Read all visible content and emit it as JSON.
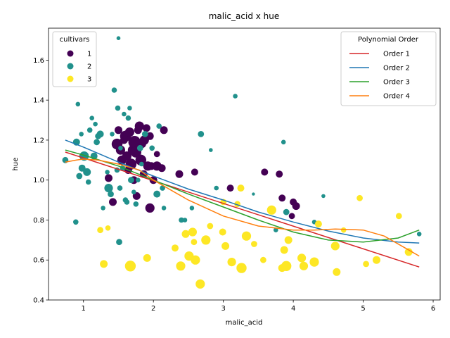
{
  "chart_data": {
    "type": "scatter",
    "title": "malic_acid x hue",
    "xlabel": "malic_acid",
    "ylabel": "hue",
    "xlim": [
      0.5,
      6.1
    ],
    "ylim": [
      0.4,
      1.76
    ],
    "xticks": [
      1,
      2,
      3,
      4,
      5,
      6
    ],
    "yticks": [
      0.4,
      0.6,
      0.8,
      1.0,
      1.2,
      1.4,
      1.6
    ],
    "xtick_labels": [
      "1",
      "2",
      "3",
      "4",
      "5",
      "6"
    ],
    "ytick_labels": [
      "0.4",
      "0.6",
      "0.8",
      "1.0",
      "1.2",
      "1.4",
      "1.6"
    ],
    "grid": false,
    "legend_cultivars": {
      "title": "cultivars",
      "placement": "top-left",
      "entries": [
        {
          "label": "1",
          "color": "#440154"
        },
        {
          "label": "2",
          "color": "#21918c"
        },
        {
          "label": "3",
          "color": "#fde725"
        }
      ]
    },
    "legend_fits": {
      "title": "Polynomial Order",
      "placement": "top-right",
      "entries": [
        {
          "label": "Order 1",
          "color": "#d62728"
        },
        {
          "label": "Order 2",
          "color": "#1f77b4"
        },
        {
          "label": "Order 3",
          "color": "#2ca02c"
        },
        {
          "label": "Order 4",
          "color": "#ff7f0e"
        }
      ]
    },
    "series": [
      {
        "name": "1",
        "color": "#440154",
        "points": [
          [
            1.36,
            1.01,
            1.0
          ],
          [
            1.42,
            0.89,
            1.0
          ],
          [
            1.48,
            1.18,
            1.4
          ],
          [
            1.5,
            1.25,
            1.0
          ],
          [
            1.53,
            1.15,
            1.2
          ],
          [
            1.55,
            1.1,
            1.2
          ],
          [
            1.58,
            1.2,
            1.0
          ],
          [
            1.6,
            1.22,
            1.4
          ],
          [
            1.62,
            1.12,
            1.2
          ],
          [
            1.64,
            1.05,
            1.0
          ],
          [
            1.66,
            1.24,
            1.2
          ],
          [
            1.68,
            1.08,
            1.4
          ],
          [
            1.7,
            1.15,
            1.2
          ],
          [
            1.72,
            1.0,
            1.0
          ],
          [
            1.73,
            1.19,
            1.6
          ],
          [
            1.75,
            1.14,
            1.4
          ],
          [
            1.76,
            0.92,
            1.0
          ],
          [
            1.78,
            1.25,
            1.0
          ],
          [
            1.8,
            1.27,
            1.2
          ],
          [
            1.82,
            1.1,
            1.4
          ],
          [
            1.84,
            1.18,
            1.0
          ],
          [
            1.86,
            1.03,
            1.0
          ],
          [
            1.87,
            1.2,
            1.2
          ],
          [
            1.9,
            1.26,
            1.0
          ],
          [
            1.92,
            1.07,
            1.2
          ],
          [
            1.95,
            1.22,
            1.0
          ],
          [
            1.95,
            0.86,
            1.2
          ],
          [
            1.97,
            1.07,
            1.0
          ],
          [
            2.0,
            1.0,
            1.0
          ],
          [
            2.05,
            1.07,
            1.2
          ],
          [
            2.05,
            1.13,
            0.8
          ],
          [
            2.12,
            1.06,
            1.0
          ],
          [
            2.15,
            1.25,
            1.0
          ],
          [
            2.37,
            1.03,
            1.0
          ],
          [
            2.59,
            1.04,
            0.9
          ],
          [
            3.1,
            0.96,
            0.9
          ],
          [
            3.59,
            1.04,
            0.9
          ],
          [
            3.8,
            1.03,
            0.9
          ],
          [
            3.84,
            0.91,
            0.9
          ],
          [
            4.0,
            0.89,
            0.9
          ],
          [
            4.04,
            0.87,
            1.0
          ],
          [
            3.98,
            0.82,
            0.8
          ]
        ]
      },
      {
        "name": "2",
        "color": "#21918c",
        "points": [
          [
            0.74,
            1.1,
            0.8
          ],
          [
            0.89,
            0.79,
            0.7
          ],
          [
            0.9,
            1.19,
            0.9
          ],
          [
            0.92,
            1.38,
            0.6
          ],
          [
            0.94,
            1.02,
            0.8
          ],
          [
            0.97,
            1.23,
            0.6
          ],
          [
            0.98,
            1.06,
            0.9
          ],
          [
            0.99,
            1.12,
            0.9
          ],
          [
            1.01,
            1.12,
            1.2
          ],
          [
            1.05,
            1.04,
            1.0
          ],
          [
            1.07,
            0.99,
            0.7
          ],
          [
            1.09,
            1.25,
            0.7
          ],
          [
            1.12,
            1.31,
            0.6
          ],
          [
            1.15,
            1.12,
            0.9
          ],
          [
            1.17,
            1.28,
            0.6
          ],
          [
            1.19,
            1.19,
            0.8
          ],
          [
            1.21,
            1.22,
            0.8
          ],
          [
            1.24,
            1.23,
            0.9
          ],
          [
            1.28,
            0.86,
            0.6
          ],
          [
            1.34,
            1.04,
            0.6
          ],
          [
            1.36,
            0.96,
            1.1
          ],
          [
            1.39,
            0.93,
            0.8
          ],
          [
            1.41,
            1.23,
            0.6
          ],
          [
            1.44,
            1.45,
            0.7
          ],
          [
            1.48,
            1.05,
            0.7
          ],
          [
            1.49,
            1.36,
            0.7
          ],
          [
            1.5,
            1.71,
            0.5
          ],
          [
            1.51,
            0.69,
            0.8
          ],
          [
            1.52,
            0.96,
            0.7
          ],
          [
            1.53,
            1.16,
            0.6
          ],
          [
            1.56,
            1.06,
            0.7
          ],
          [
            1.58,
            1.33,
            0.6
          ],
          [
            1.6,
            0.9,
            0.7
          ],
          [
            1.62,
            0.89,
            0.7
          ],
          [
            1.64,
            1.31,
            0.7
          ],
          [
            1.66,
            1.36,
            0.6
          ],
          [
            1.68,
            1.0,
            0.8
          ],
          [
            1.72,
            0.94,
            0.6
          ],
          [
            1.75,
            0.88,
            0.7
          ],
          [
            1.78,
            1.0,
            0.6
          ],
          [
            1.81,
            1.16,
            0.8
          ],
          [
            1.83,
            1.08,
            0.6
          ],
          [
            1.88,
            1.23,
            0.8
          ],
          [
            1.98,
            1.16,
            0.7
          ],
          [
            2.05,
            0.93,
            0.9
          ],
          [
            2.08,
            1.27,
            0.7
          ],
          [
            2.13,
            0.96,
            0.7
          ],
          [
            2.15,
            0.86,
            0.6
          ],
          [
            2.4,
            0.8,
            0.7
          ],
          [
            2.45,
            0.8,
            0.6
          ],
          [
            2.55,
            0.86,
            0.6
          ],
          [
            2.68,
            1.23,
            0.8
          ],
          [
            2.82,
            1.15,
            0.5
          ],
          [
            2.9,
            0.96,
            0.6
          ],
          [
            3.17,
            1.42,
            0.6
          ],
          [
            3.43,
            0.93,
            0.4
          ],
          [
            3.75,
            0.75,
            0.6
          ],
          [
            3.86,
            1.19,
            0.6
          ],
          [
            3.9,
            0.84,
            0.8
          ],
          [
            4.3,
            0.79,
            0.6
          ],
          [
            4.43,
            0.92,
            0.5
          ],
          [
            5.8,
            0.73,
            0.6
          ]
        ]
      },
      {
        "name": "3",
        "color": "#fde725",
        "points": [
          [
            1.24,
            0.75,
            0.8
          ],
          [
            1.29,
            0.58,
            1.0
          ],
          [
            1.35,
            0.76,
            0.7
          ],
          [
            1.67,
            0.57,
            1.4
          ],
          [
            1.91,
            0.61,
            1.0
          ],
          [
            2.31,
            0.66,
            0.9
          ],
          [
            2.39,
            0.57,
            1.2
          ],
          [
            2.46,
            0.73,
            1.0
          ],
          [
            2.51,
            0.62,
            1.2
          ],
          [
            2.56,
            0.74,
            1.1
          ],
          [
            2.58,
            0.69,
            0.8
          ],
          [
            2.6,
            0.6,
            1.2
          ],
          [
            2.67,
            0.48,
            1.2
          ],
          [
            2.75,
            0.7,
            1.2
          ],
          [
            2.81,
            0.77,
            0.8
          ],
          [
            2.99,
            0.74,
            0.9
          ],
          [
            3.0,
            0.89,
            0.8
          ],
          [
            3.03,
            0.67,
            1.0
          ],
          [
            3.12,
            0.59,
            1.1
          ],
          [
            3.2,
            0.88,
            0.8
          ],
          [
            3.25,
            0.96,
            0.9
          ],
          [
            3.26,
            0.56,
            1.3
          ],
          [
            3.33,
            0.72,
            1.2
          ],
          [
            3.44,
            0.68,
            0.8
          ],
          [
            3.57,
            0.6,
            0.8
          ],
          [
            3.69,
            0.85,
            1.2
          ],
          [
            3.84,
            0.56,
            1.0
          ],
          [
            3.87,
            0.65,
            1.0
          ],
          [
            3.9,
            0.57,
            1.3
          ],
          [
            3.93,
            0.7,
            1.0
          ],
          [
            4.12,
            0.61,
            1.1
          ],
          [
            4.15,
            0.57,
            1.1
          ],
          [
            4.3,
            0.59,
            1.2
          ],
          [
            4.36,
            0.78,
            0.9
          ],
          [
            4.6,
            0.67,
            1.1
          ],
          [
            4.62,
            0.54,
            1.0
          ],
          [
            4.72,
            0.75,
            0.7
          ],
          [
            4.95,
            0.91,
            0.8
          ],
          [
            5.04,
            0.58,
            0.8
          ],
          [
            5.19,
            0.6,
            1.0
          ],
          [
            5.51,
            0.82,
            0.8
          ],
          [
            5.65,
            0.64,
            1.0
          ]
        ]
      }
    ],
    "fits": [
      {
        "name": "Order 1",
        "color": "#d62728",
        "x": [
          0.74,
          5.8
        ],
        "y": [
          1.14,
          0.565
        ]
      },
      {
        "name": "Order 2",
        "color": "#1f77b4",
        "x": [
          0.74,
          1.0,
          1.5,
          2.0,
          2.5,
          3.0,
          3.5,
          4.0,
          4.5,
          5.0,
          5.5,
          5.8
        ],
        "y": [
          1.2,
          1.165,
          1.09,
          1.02,
          0.955,
          0.9,
          0.84,
          0.79,
          0.745,
          0.71,
          0.69,
          0.685
        ]
      },
      {
        "name": "Order 3",
        "color": "#2ca02c",
        "x": [
          0.74,
          1.0,
          1.5,
          2.0,
          2.5,
          3.0,
          3.5,
          4.0,
          4.5,
          5.0,
          5.5,
          5.8
        ],
        "y": [
          1.15,
          1.125,
          1.07,
          1.0,
          0.93,
          0.865,
          0.8,
          0.74,
          0.7,
          0.69,
          0.71,
          0.75
        ]
      },
      {
        "name": "Order 4",
        "color": "#ff7f0e",
        "x": [
          0.74,
          0.9,
          1.0,
          1.2,
          1.5,
          1.8,
          2.0,
          2.5,
          3.0,
          3.5,
          4.0,
          4.3,
          4.6,
          5.0,
          5.3,
          5.6,
          5.8
        ],
        "y": [
          1.09,
          1.1,
          1.105,
          1.1,
          1.08,
          1.05,
          1.0,
          0.9,
          0.82,
          0.77,
          0.75,
          0.75,
          0.755,
          0.75,
          0.72,
          0.66,
          0.62
        ]
      }
    ]
  }
}
